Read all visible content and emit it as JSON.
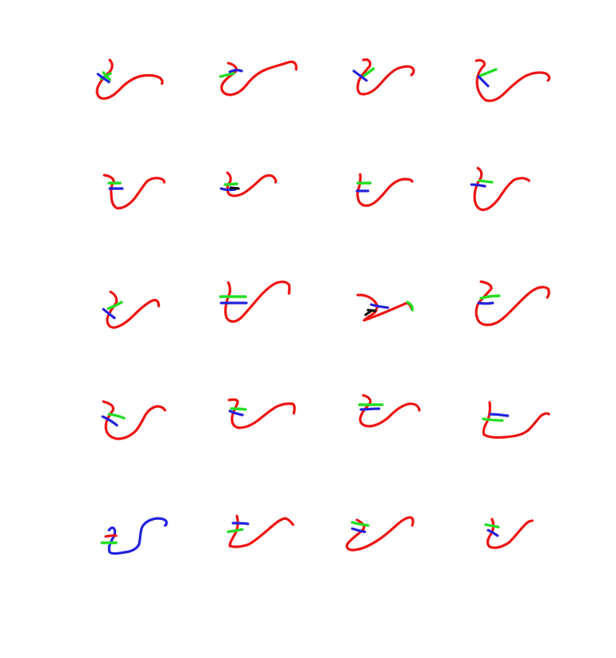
{
  "grid": {
    "rows": 5,
    "columns": 4
  },
  "colors": {
    "background": "#ffffff",
    "main_stroke": "#ee1111",
    "cross_stroke_a": "#2222dd",
    "cross_stroke_b": "#22dd22",
    "extra_stroke": "#111111"
  },
  "stroke_sequence": [
    "red",
    "green",
    "blue",
    "black"
  ],
  "samples": [
    {
      "id": "r1c1",
      "strokes": [
        "red",
        "green",
        "blue"
      ]
    },
    {
      "id": "r1c2",
      "strokes": [
        "red",
        "green",
        "blue"
      ]
    },
    {
      "id": "r1c3",
      "strokes": [
        "red",
        "green",
        "blue"
      ]
    },
    {
      "id": "r1c4",
      "strokes": [
        "red",
        "green",
        "blue"
      ]
    },
    {
      "id": "r2c1",
      "strokes": [
        "red",
        "green",
        "blue"
      ]
    },
    {
      "id": "r2c2",
      "strokes": [
        "red",
        "green",
        "blue",
        "black"
      ]
    },
    {
      "id": "r2c3",
      "strokes": [
        "red",
        "green",
        "blue"
      ]
    },
    {
      "id": "r2c4",
      "strokes": [
        "red",
        "green",
        "blue"
      ]
    },
    {
      "id": "r3c1",
      "strokes": [
        "red",
        "green",
        "blue"
      ]
    },
    {
      "id": "r3c2",
      "strokes": [
        "red",
        "green",
        "blue"
      ]
    },
    {
      "id": "r3c3",
      "strokes": [
        "red",
        "green",
        "blue",
        "black"
      ]
    },
    {
      "id": "r3c4",
      "strokes": [
        "red",
        "green",
        "blue"
      ]
    },
    {
      "id": "r4c1",
      "strokes": [
        "red",
        "green",
        "blue"
      ]
    },
    {
      "id": "r4c2",
      "strokes": [
        "red",
        "green",
        "blue"
      ]
    },
    {
      "id": "r4c3",
      "strokes": [
        "red",
        "green",
        "blue"
      ]
    },
    {
      "id": "r4c4",
      "strokes": [
        "red",
        "green",
        "blue"
      ]
    },
    {
      "id": "r5c1",
      "strokes": [
        "blue",
        "green",
        "red"
      ]
    },
    {
      "id": "r5c2",
      "strokes": [
        "red",
        "green",
        "blue"
      ]
    },
    {
      "id": "r5c3",
      "strokes": [
        "red",
        "green",
        "blue"
      ]
    },
    {
      "id": "r5c4",
      "strokes": [
        "red",
        "green",
        "blue"
      ]
    }
  ]
}
